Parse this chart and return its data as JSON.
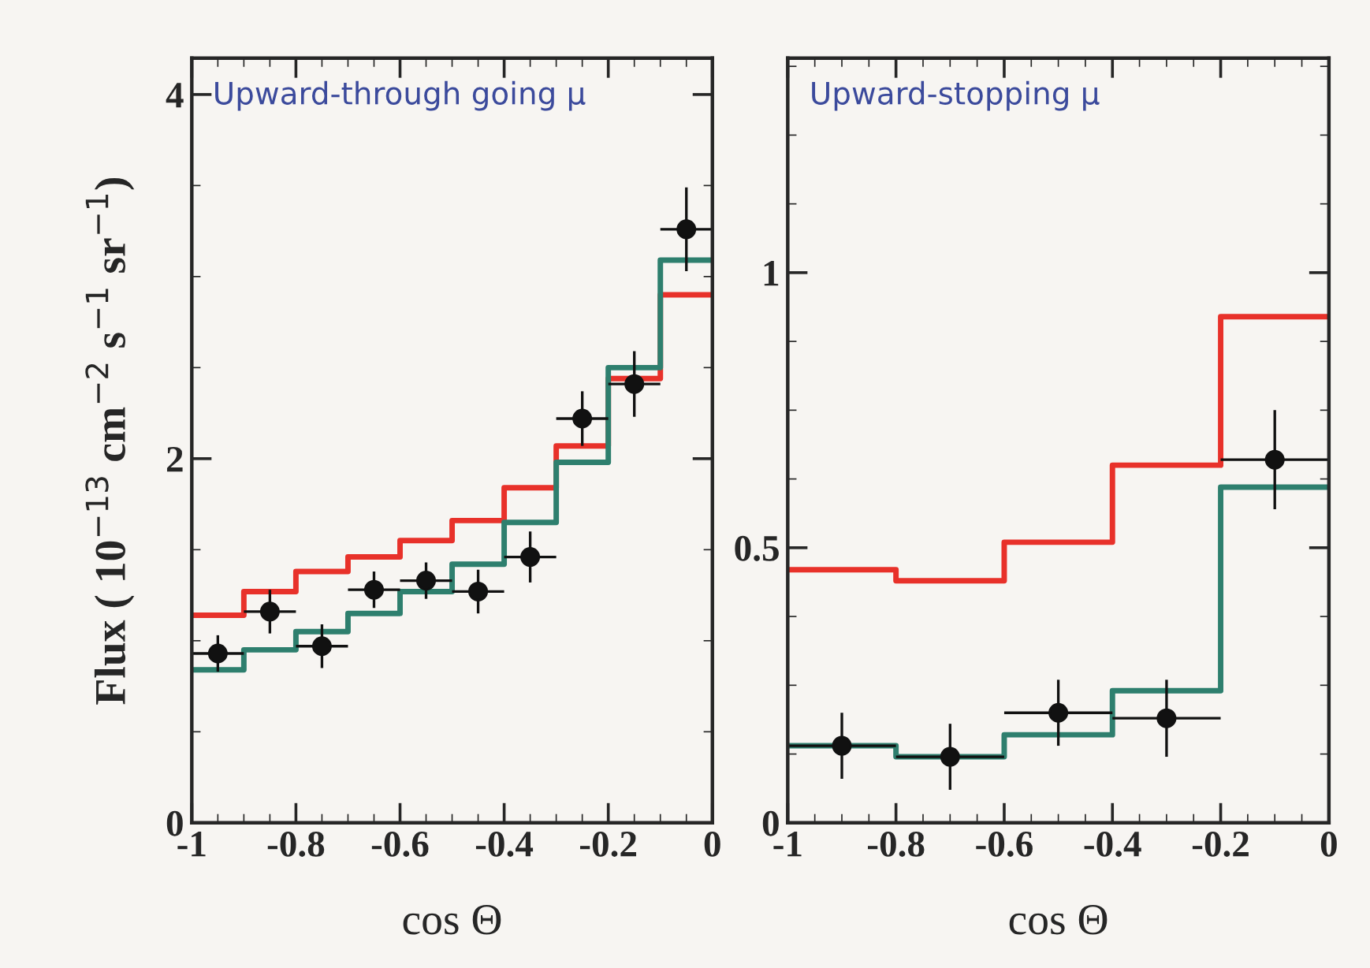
{
  "chart_data": [
    {
      "type": "step",
      "title": "Upward-through going μ",
      "xlabel": "cos Θ",
      "ylabel": "Flux ( 10$^{−13}$ cm$^{−2}$ s$^{−1}$ sr$^{−1}$)",
      "xlim": [
        -1,
        0
      ],
      "xticks": [
        -1,
        -0.8,
        -0.6,
        -0.4,
        -0.2,
        0
      ],
      "ylim": [
        0,
        4.2
      ],
      "yticks": [
        0,
        2,
        4
      ],
      "grid": false,
      "legend": false,
      "series": [
        {
          "color": "#e8312a",
          "x": [
            -1,
            -0.9,
            -0.8,
            -0.7,
            -0.6,
            -0.5,
            -0.4,
            -0.3,
            -0.2,
            -0.1,
            0
          ],
          "values": [
            1.14,
            1.27,
            1.38,
            1.46,
            1.55,
            1.66,
            1.84,
            2.07,
            2.44,
            2.9,
            2.9
          ]
        },
        {
          "color": "#2e7f6e",
          "x": [
            -1,
            -0.9,
            -0.8,
            -0.7,
            -0.6,
            -0.5,
            -0.4,
            -0.3,
            -0.2,
            -0.1,
            0
          ],
          "values": [
            0.84,
            0.95,
            1.05,
            1.15,
            1.27,
            1.42,
            1.65,
            1.98,
            2.5,
            3.09,
            3.09
          ]
        },
        {
          "type": "scatter",
          "marker": "circle",
          "color": "#111111",
          "x": [
            -0.95,
            -0.85,
            -0.75,
            -0.65,
            -0.55,
            -0.45,
            -0.35,
            -0.25,
            -0.15,
            -0.05
          ],
          "values": [
            0.93,
            1.16,
            0.97,
            1.28,
            1.33,
            1.27,
            1.46,
            2.22,
            2.41,
            3.26
          ],
          "errors": [
            0.1,
            0.12,
            0.12,
            0.1,
            0.1,
            0.12,
            0.14,
            0.15,
            0.18,
            0.23
          ],
          "xerrors": [
            0.05,
            0.05,
            0.05,
            0.05,
            0.05,
            0.05,
            0.05,
            0.05,
            0.05,
            0.05
          ]
        }
      ]
    },
    {
      "type": "step",
      "title": "Upward-stopping μ",
      "xlabel": "cos Θ",
      "xlim": [
        -1,
        0
      ],
      "xticks": [
        -1,
        -0.8,
        -0.6,
        -0.4,
        -0.2,
        0
      ],
      "ylim": [
        0,
        1.39
      ],
      "yticks": [
        0,
        0.5,
        1
      ],
      "grid": false,
      "legend": false,
      "series": [
        {
          "color": "#e8312a",
          "x": [
            -1,
            -0.8,
            -0.6,
            -0.4,
            -0.2,
            0
          ],
          "values": [
            0.46,
            0.44,
            0.51,
            0.65,
            0.92,
            0.92
          ]
        },
        {
          "color": "#2e7f6e",
          "x": [
            -1,
            -0.8,
            -0.6,
            -0.4,
            -0.2,
            0
          ],
          "values": [
            0.14,
            0.12,
            0.16,
            0.24,
            0.61,
            0.61
          ]
        },
        {
          "type": "scatter",
          "marker": "circle",
          "color": "#111111",
          "x": [
            -0.9,
            -0.7,
            -0.5,
            -0.3,
            -0.1
          ],
          "values": [
            0.14,
            0.12,
            0.2,
            0.19,
            0.66
          ],
          "errors": [
            0.06,
            0.06,
            0.06,
            0.07,
            0.09
          ],
          "xerrors": [
            0.1,
            0.1,
            0.1,
            0.1,
            0.1
          ]
        }
      ]
    }
  ]
}
